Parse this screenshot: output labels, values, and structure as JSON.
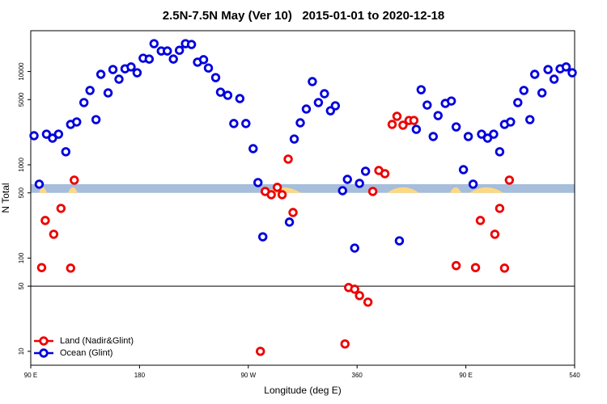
{
  "chart_data": {
    "type": "scatter",
    "title": "2.5N-7.5N May (Ver 10)   2015-01-01 to 2020-12-18",
    "x_label": "Longitude (deg E)",
    "y_label": "N Total",
    "log_y": true,
    "xlim": [
      90,
      540
    ],
    "ylim": [
      7.1,
      27400
    ],
    "xticks": [
      {
        "value": 90,
        "label": "90 E"
      },
      180,
      {
        "value": 270,
        "label": "90 W"
      },
      360,
      {
        "value": 450,
        "label": "90 E"
      },
      540
    ],
    "yticks": [
      10,
      50,
      100,
      500,
      1000,
      5000,
      10000
    ],
    "reference_line": 50,
    "band": [
      500,
      620
    ],
    "band_color": "#a6bddb",
    "legend_loc": "lower left",
    "series": [
      {
        "name": "Land (Nadir&Glint)",
        "color": "#ee0000",
        "x": [
          99,
          102,
          109,
          115,
          123,
          126,
          280,
          284,
          289,
          294,
          298,
          303,
          307,
          350,
          353,
          358,
          362,
          369,
          373,
          378,
          383,
          389,
          393,
          398,
          403,
          407,
          442,
          458,
          462,
          474,
          478,
          482,
          486
        ],
        "values": [
          79,
          253,
          180,
          341,
          78,
          685,
          10,
          518,
          478,
          573,
          478,
          1150,
          308,
          12,
          48.3,
          46.4,
          39.6,
          33.7,
          518,
          869,
          803,
          2710,
          3310,
          2660,
          2990,
          2990,
          83,
          79,
          253,
          180,
          341,
          78,
          685
        ]
      },
      {
        "name": "Ocean (Glint)",
        "color": "#0000dd",
        "x": [
          92.7,
          97,
          103,
          108,
          113,
          119,
          123,
          128,
          134,
          139,
          144,
          148,
          154,
          158,
          163,
          168,
          173,
          178,
          183,
          188,
          192,
          198,
          203,
          208,
          213,
          218,
          223,
          228,
          233,
          237,
          243,
          247,
          253,
          258,
          263,
          268,
          274,
          278,
          282,
          304,
          308,
          313,
          318,
          323,
          328,
          333,
          338,
          342,
          348,
          352,
          358,
          362,
          367,
          395,
          409,
          413,
          418,
          423,
          427,
          433,
          438,
          442,
          448,
          452,
          456,
          463,
          468,
          473,
          478,
          482,
          487,
          493,
          498,
          503,
          507,
          513,
          518,
          523,
          528,
          533,
          538
        ],
        "values": [
          2050,
          620,
          2130,
          1930,
          2130,
          1380,
          2710,
          2880,
          4650,
          6270,
          3050,
          9330,
          5900,
          10500,
          8280,
          10700,
          11200,
          9700,
          13900,
          13600,
          19900,
          16600,
          16600,
          13600,
          16900,
          19900,
          19500,
          12600,
          13400,
          10900,
          8610,
          6010,
          5560,
          2770,
          5130,
          2770,
          1490,
          645,
          169,
          243,
          1890,
          2820,
          3960,
          7800,
          4650,
          5780,
          3800,
          4290,
          528,
          698,
          128,
          632,
          853,
          153,
          2400,
          6380,
          4370,
          2010,
          3370,
          4550,
          4830,
          2550,
          887,
          2010,
          620,
          2130,
          1930,
          2130,
          1380,
          2710,
          2880,
          4650,
          6270,
          3050,
          9330,
          5900,
          10500,
          8280,
          10700,
          11200,
          9700
        ]
      }
    ]
  }
}
